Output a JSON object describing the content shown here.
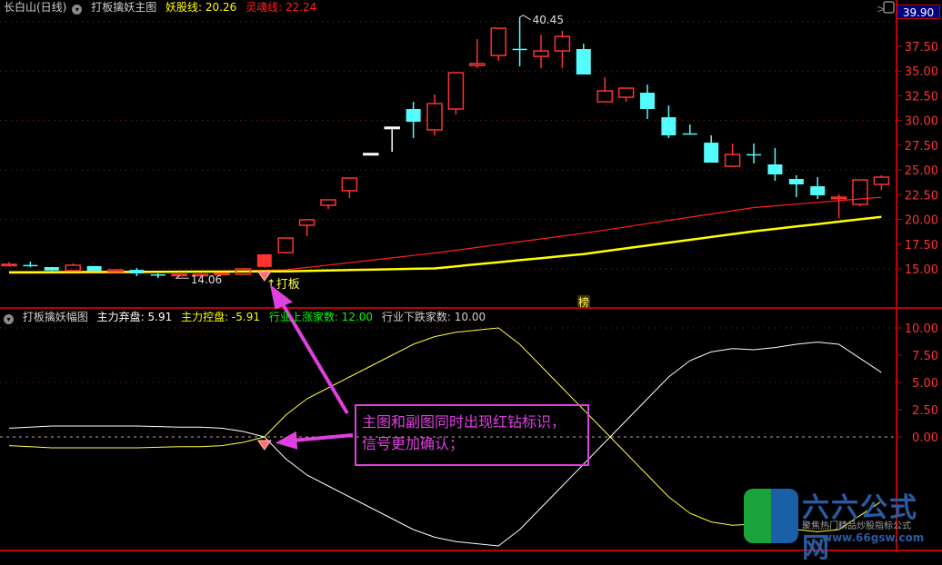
{
  "main_header": {
    "title": "长白山(日线)",
    "indicator_name": "打板擒妖主图",
    "line1_label": "妖股线: 20.26",
    "line2_label": "灵魂线: 22.24",
    "icon": "chevron-down-circle-icon"
  },
  "sub_header": {
    "indicator_name": "打板擒妖幅图",
    "item1": "主力弃盘: 5.91",
    "item2": "主力控盘: -5.91",
    "item3": "行业上涨家数: 12.00",
    "item4": "行业下跌家数: 10.00",
    "icon": "chevron-down-circle-icon"
  },
  "current_price_tag": "39.90",
  "colors": {
    "up": "#ff3232",
    "down": "#54fcfc",
    "flat": "#ffffff",
    "ma_red": "#ff2020",
    "ma_yellow": "#ffff00",
    "axis": "#c00000",
    "annotation": "#e040e0"
  },
  "annotation": {
    "line1": "主图和副图同时出现红钻标识，",
    "line2": "信号更加确认；",
    "dabang": "↑打板",
    "bang_marker": "榜",
    "high_label": "40.45",
    "low_label": "14.06"
  },
  "logo": {
    "name": "六六公式网",
    "slogan": "聚焦热门精品炒股指标公式",
    "url": "www.66gsw.com"
  },
  "chart_data": [
    {
      "type": "candlestick",
      "panel": "main",
      "ylim": [
        13.5,
        40.5
      ],
      "yticks": [
        "15.00",
        "17.50",
        "20.00",
        "22.50",
        "25.00",
        "27.50",
        "30.00",
        "32.50",
        "35.00",
        "37.50"
      ],
      "grid": "dotted",
      "ohlc": [
        [
          15.42,
          15.7,
          15.3,
          15.46
        ],
        [
          15.4,
          15.73,
          15.18,
          15.38
        ],
        [
          15.18,
          15.2,
          14.8,
          14.84
        ],
        [
          14.82,
          15.55,
          14.82,
          15.37
        ],
        [
          15.28,
          15.3,
          14.82,
          14.82
        ],
        [
          14.72,
          14.95,
          14.7,
          14.9
        ],
        [
          14.9,
          15.09,
          14.27,
          14.54
        ],
        [
          14.45,
          14.54,
          14.06,
          14.36
        ],
        [
          14.45,
          14.45,
          14.45,
          14.45
        ],
        [
          14.3,
          14.5,
          14.28,
          14.45
        ],
        [
          14.45,
          14.6,
          14.4,
          14.55
        ],
        [
          14.45,
          15.1,
          14.4,
          15.0
        ],
        [
          15.2,
          16.47,
          15.1,
          16.47
        ],
        [
          16.65,
          18.12,
          16.65,
          18.12
        ],
        [
          19.41,
          19.96,
          18.3,
          19.96
        ],
        [
          21.43,
          21.98,
          21.06,
          21.98
        ],
        [
          22.9,
          24.18,
          22.16,
          24.18
        ],
        [
          26.66,
          26.66,
          26.66,
          26.66
        ],
        [
          29.32,
          29.32,
          26.84,
          29.32
        ],
        [
          31.16,
          31.89,
          28.22,
          29.87
        ],
        [
          29.05,
          32.63,
          28.5,
          31.71
        ],
        [
          31.16,
          34.83,
          30.6,
          34.83
        ],
        [
          35.56,
          38.23,
          35.29,
          35.75
        ],
        [
          36.57,
          39.33,
          36.02,
          39.33
        ],
        [
          37.25,
          40.45,
          35.47,
          37.2
        ],
        [
          36.48,
          38.68,
          35.29,
          37.03
        ],
        [
          37.03,
          39.05,
          35.29,
          38.5
        ],
        [
          37.22,
          37.77,
          34.65,
          34.65
        ],
        [
          31.89,
          34.37,
          31.89,
          32.99
        ],
        [
          32.35,
          33.27,
          31.89,
          33.27
        ],
        [
          32.81,
          33.63,
          30.15,
          31.16
        ],
        [
          30.33,
          31.52,
          28.22,
          28.5
        ],
        [
          28.7,
          29.6,
          28.59,
          28.65
        ],
        [
          27.76,
          28.5,
          25.74,
          25.74
        ],
        [
          25.37,
          27.67,
          25.37,
          26.57
        ],
        [
          26.6,
          27.67,
          25.65,
          26.55
        ],
        [
          25.56,
          27.21,
          23.9,
          24.55
        ],
        [
          24.09,
          24.46,
          22.25,
          23.54
        ],
        [
          23.35,
          24.27,
          22.07,
          22.44
        ],
        [
          22.1,
          22.53,
          20.14,
          22.25
        ],
        [
          21.52,
          24.0,
          21.33,
          24.0
        ],
        [
          23.54,
          24.46,
          22.99,
          24.27
        ]
      ],
      "limit_up_index": 12,
      "signal_index": 12,
      "series": [
        {
          "name": "灵魂线",
          "anchors": [
            [
              0,
              14.55
            ],
            [
              6,
              14.6
            ],
            [
              13,
              14.9
            ],
            [
              20,
              16.6
            ],
            [
              27,
              18.6
            ],
            [
              35,
              21.2
            ],
            [
              41,
              22.24
            ]
          ]
        },
        {
          "name": "妖股线",
          "anchors": [
            [
              0,
              14.65
            ],
            [
              6,
              14.7
            ],
            [
              13,
              14.75
            ],
            [
              20,
              15.05
            ],
            [
              27,
              16.5
            ],
            [
              35,
              18.8
            ],
            [
              41,
              20.26
            ]
          ]
        }
      ]
    },
    {
      "type": "line",
      "panel": "sub",
      "ylim": [
        -10,
        10.5
      ],
      "yticks": [
        "10.00",
        "7.50",
        "5.00",
        "2.50",
        "0.00"
      ],
      "signal_index": 12,
      "series": [
        {
          "name": "主力弃盘",
          "values": [
            0.8,
            0.9,
            1.0,
            1.0,
            1.0,
            1.0,
            1.0,
            0.95,
            0.9,
            0.9,
            0.8,
            0.5,
            0.0,
            -2.0,
            -3.5,
            -4.5,
            -5.5,
            -6.5,
            -7.5,
            -8.5,
            -9.2,
            -9.6,
            -9.8,
            -10.0,
            -8.5,
            -6.5,
            -4.5,
            -2.5,
            -0.5,
            1.5,
            3.5,
            5.5,
            7.0,
            7.8,
            8.1,
            8.0,
            8.2,
            8.5,
            8.7,
            8.5,
            7.2,
            5.91
          ]
        },
        {
          "name": "主力控盘",
          "values": [
            -0.8,
            -0.9,
            -1.0,
            -1.0,
            -1.0,
            -1.0,
            -1.0,
            -0.95,
            -0.9,
            -0.9,
            -0.8,
            -0.5,
            0.0,
            2.0,
            3.5,
            4.5,
            5.5,
            6.5,
            7.5,
            8.5,
            9.2,
            9.6,
            9.8,
            10.0,
            8.5,
            6.5,
            4.5,
            2.5,
            0.5,
            -1.5,
            -3.5,
            -5.5,
            -7.0,
            -7.8,
            -8.1,
            -8.0,
            -8.2,
            -8.5,
            -8.7,
            -8.5,
            -7.2,
            -5.91
          ]
        }
      ]
    }
  ]
}
